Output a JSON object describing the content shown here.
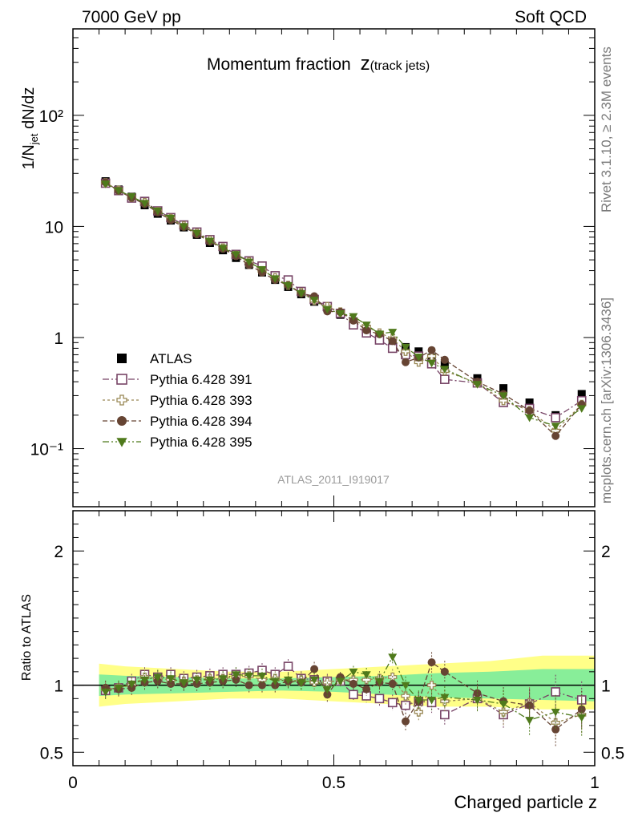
{
  "header": {
    "left": "7000 GeV pp",
    "right": "Soft QCD"
  },
  "side_labels": {
    "rivet": "Rivet 3.1.10, ≥ 2.3M events",
    "mcplots": "mcplots.cern.ch [arXiv:1306.3436]"
  },
  "analysis_id": "ATLAS_2011_I919017",
  "chart_data": [
    {
      "type": "scatter",
      "panel": "main",
      "title": "Momentum fraction",
      "title_suffix": "z",
      "title_sub": "(track jets)",
      "ylabel": "1/N_jet dN/dz",
      "yscale": "log",
      "ylim": [
        0.03,
        600
      ],
      "xlim": [
        0,
        1
      ],
      "yticklabels": [
        "10⁻¹",
        "1",
        "10",
        "10²"
      ],
      "x": [
        0.0625,
        0.0875,
        0.1125,
        0.1375,
        0.1625,
        0.1875,
        0.2125,
        0.2375,
        0.2625,
        0.2875,
        0.3125,
        0.3375,
        0.3625,
        0.3875,
        0.4125,
        0.4375,
        0.4625,
        0.4875,
        0.5125,
        0.5375,
        0.5625,
        0.5875,
        0.6125,
        0.6375,
        0.6625,
        0.6875,
        0.7125,
        0.775,
        0.825,
        0.875,
        0.925,
        0.975
      ],
      "series": [
        {
          "name": "ATLAS",
          "color": "#000000",
          "marker": "filled-square",
          "values": [
            25.5,
            21.5,
            18.5,
            15.5,
            13.0,
            11.3,
            9.8,
            8.4,
            7.1,
            6.1,
            5.2,
            4.5,
            3.85,
            3.3,
            2.85,
            2.45,
            2.1,
            1.85,
            1.6,
            1.4,
            1.2,
            1.05,
            0.92,
            0.82,
            0.75,
            0.66,
            0.57,
            0.43,
            0.35,
            0.26,
            0.2,
            0.31
          ]
        },
        {
          "name": "Pythia 6.428 391",
          "color": "#774466",
          "marker": "open-square",
          "values": [
            24.5,
            21.0,
            18.0,
            16.8,
            13.8,
            12.0,
            10.3,
            8.9,
            7.6,
            6.6,
            5.6,
            4.9,
            4.4,
            3.6,
            3.3,
            2.6,
            2.2,
            1.9,
            1.65,
            1.3,
            1.1,
            0.95,
            0.8,
            0.7,
            0.68,
            0.58,
            0.42,
            0.39,
            0.26,
            0.23,
            0.19,
            0.27
          ]
        },
        {
          "name": "Pythia 6.428 393",
          "color": "#998855",
          "marker": "open-cross",
          "values": [
            24.8,
            21.2,
            18.2,
            16.4,
            13.6,
            11.8,
            10.1,
            8.7,
            7.5,
            6.4,
            5.5,
            4.8,
            4.0,
            3.45,
            2.95,
            2.55,
            2.15,
            1.9,
            1.7,
            1.45,
            1.25,
            1.1,
            0.98,
            0.75,
            0.6,
            0.68,
            0.5,
            0.39,
            0.27,
            0.22,
            0.145,
            0.25
          ]
        },
        {
          "name": "Pythia 6.428 394",
          "color": "#664433",
          "marker": "filled-circle",
          "values": [
            24.9,
            20.9,
            18.1,
            15.9,
            13.4,
            11.4,
            9.9,
            8.5,
            7.3,
            6.3,
            5.4,
            4.5,
            3.85,
            3.3,
            2.95,
            2.5,
            2.35,
            1.72,
            1.7,
            1.42,
            1.16,
            1.07,
            0.93,
            0.6,
            0.66,
            0.77,
            0.63,
            0.4,
            0.31,
            0.22,
            0.13,
            0.25
          ]
        },
        {
          "name": "Pythia 6.428 395",
          "color": "#4f7a1c",
          "marker": "filled-triangle-down",
          "values": [
            24.2,
            21.1,
            18.6,
            16.2,
            13.8,
            11.9,
            10.0,
            8.7,
            7.4,
            6.4,
            5.6,
            4.8,
            4.1,
            3.4,
            2.95,
            2.5,
            2.18,
            1.8,
            1.65,
            1.55,
            1.3,
            1.08,
            1.12,
            0.82,
            0.67,
            0.59,
            0.52,
            0.38,
            0.3,
            0.19,
            0.16,
            0.23
          ]
        }
      ]
    },
    {
      "type": "scatter",
      "panel": "ratio",
      "ylabel": "Ratio to ATLAS",
      "xlabel": "Charged particle z",
      "ylim": [
        0.4,
        2.3
      ],
      "xlim": [
        0,
        1
      ],
      "yticklabels": [
        "0.5",
        "1",
        "2"
      ],
      "xticklabels": [
        "0",
        "0.5",
        "1"
      ],
      "reference_line": 1,
      "uncertainty_band_green": [
        [
          0.05,
          0.92,
          1.08
        ],
        [
          0.1,
          0.93,
          1.07
        ],
        [
          0.2,
          0.94,
          1.06
        ],
        [
          0.3,
          0.95,
          1.05
        ],
        [
          0.4,
          0.96,
          1.05
        ],
        [
          0.5,
          0.95,
          1.06
        ],
        [
          0.6,
          0.93,
          1.07
        ],
        [
          0.7,
          0.91,
          1.09
        ],
        [
          0.8,
          0.9,
          1.1
        ],
        [
          0.9,
          0.89,
          1.12
        ],
        [
          1.0,
          0.88,
          1.12
        ]
      ],
      "uncertainty_band_yellow": [
        [
          0.05,
          0.84,
          1.16
        ],
        [
          0.1,
          0.86,
          1.14
        ],
        [
          0.2,
          0.88,
          1.12
        ],
        [
          0.3,
          0.9,
          1.1
        ],
        [
          0.4,
          0.9,
          1.1
        ],
        [
          0.5,
          0.88,
          1.12
        ],
        [
          0.6,
          0.86,
          1.14
        ],
        [
          0.7,
          0.84,
          1.16
        ],
        [
          0.8,
          0.84,
          1.18
        ],
        [
          0.9,
          0.82,
          1.22
        ],
        [
          1.0,
          0.82,
          1.22
        ]
      ],
      "series": [
        {
          "name": "Pythia 6.428 391",
          "color": "#774466",
          "marker": "open-square",
          "values": [
            0.96,
            0.98,
            1.03,
            1.08,
            1.06,
            1.08,
            1.05,
            1.06,
            1.07,
            1.08,
            1.08,
            1.09,
            1.11,
            1.08,
            1.14,
            1.05,
            1.04,
            1.03,
            1.03,
            0.93,
            0.92,
            0.9,
            0.87,
            0.85,
            0.88,
            0.87,
            0.78,
            0.9,
            0.78,
            0.86,
            0.95,
            0.89
          ]
        },
        {
          "name": "Pythia 6.428 393",
          "color": "#998855",
          "marker": "open-cross",
          "values": [
            0.97,
            0.98,
            1.0,
            1.06,
            1.05,
            1.04,
            1.03,
            1.04,
            1.05,
            1.05,
            1.06,
            1.07,
            1.04,
            1.05,
            1.03,
            1.04,
            1.02,
            1.02,
            1.04,
            1.04,
            1.04,
            1.05,
            1.06,
            0.92,
            0.8,
            1.0,
            0.88,
            0.9,
            0.8,
            0.87,
            0.72,
            0.78
          ]
        },
        {
          "name": "Pythia 6.428 394",
          "color": "#664433",
          "marker": "filled-circle",
          "values": [
            0.98,
            0.97,
            0.98,
            1.02,
            1.03,
            1.01,
            1.01,
            1.01,
            1.02,
            1.03,
            1.04,
            1.0,
            1.0,
            1.0,
            1.03,
            1.02,
            1.12,
            0.93,
            1.06,
            1.01,
            0.97,
            1.02,
            1.01,
            0.73,
            0.88,
            1.17,
            1.1,
            0.94,
            0.88,
            0.85,
            0.67,
            0.82
          ]
        },
        {
          "name": "Pythia 6.428 395",
          "color": "#4f7a1c",
          "marker": "filled-triangle-down",
          "values": [
            0.95,
            0.98,
            1.01,
            1.04,
            1.06,
            1.05,
            1.02,
            1.04,
            1.04,
            1.05,
            1.08,
            1.07,
            1.07,
            1.03,
            1.04,
            1.02,
            1.04,
            0.97,
            1.03,
            1.1,
            1.08,
            1.03,
            1.21,
            1.0,
            0.89,
            0.89,
            0.91,
            0.89,
            0.86,
            0.74,
            0.8,
            0.76
          ]
        }
      ]
    }
  ]
}
